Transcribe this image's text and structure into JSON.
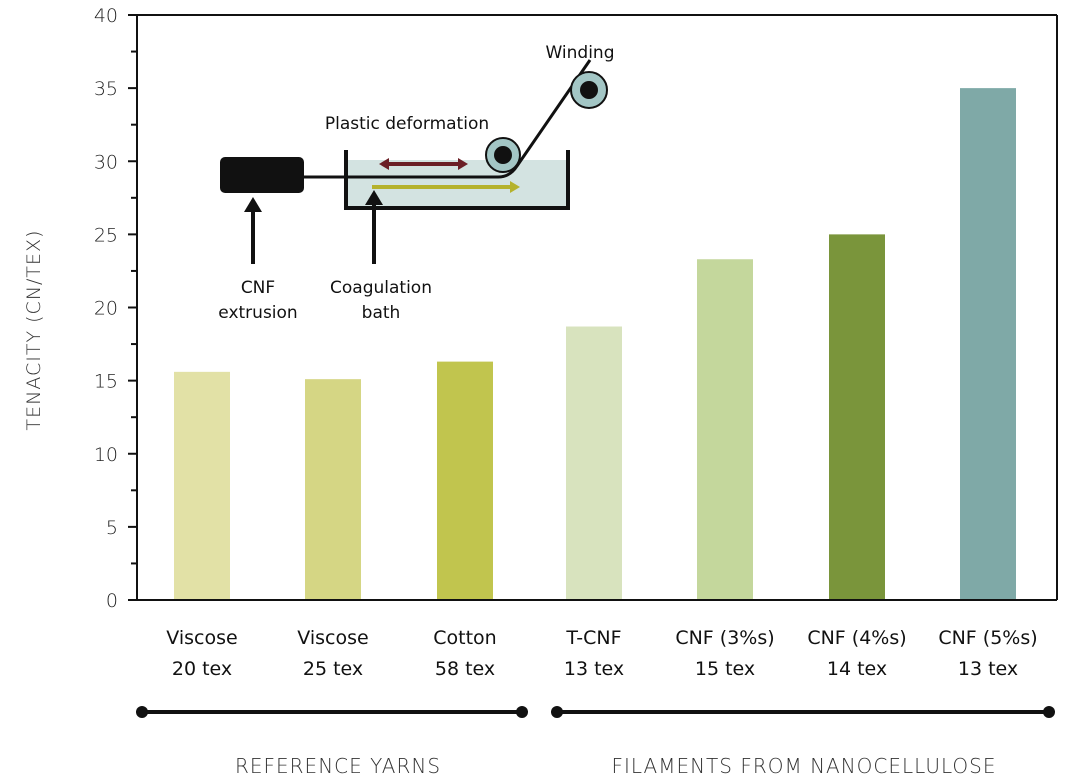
{
  "chart_data": {
    "type": "bar",
    "ylabel": "TENACITY (CN/TEX)",
    "ylim": [
      0,
      40
    ],
    "yticks": [
      0,
      5,
      10,
      15,
      20,
      25,
      30,
      35,
      40
    ],
    "grid": false,
    "categories": [
      {
        "line1": "Viscose",
        "line2": "20 tex"
      },
      {
        "line1": "Viscose",
        "line2": "25 tex"
      },
      {
        "line1": "Cotton",
        "line2": "58 tex"
      },
      {
        "line1": "T-CNF",
        "line2": "13 tex"
      },
      {
        "line1": "CNF (3%s)",
        "line2": "15 tex"
      },
      {
        "line1": "CNF (4%s)",
        "line2": "14 tex"
      },
      {
        "line1": "CNF (5%s)",
        "line2": "13 tex"
      }
    ],
    "values": [
      15.6,
      15.1,
      16.3,
      18.7,
      23.3,
      25.0,
      35.0
    ],
    "colors": [
      "#e2e1a6",
      "#d5d684",
      "#c1c54e",
      "#d8e3be",
      "#c4d79c",
      "#7a953b",
      "#7fa9a7"
    ],
    "groups": [
      {
        "label": "REFERENCE YARNS",
        "from": 0,
        "to": 2
      },
      {
        "label": "FILAMENTS FROM NANOCELLULOSE",
        "from": 3,
        "to": 6
      }
    ],
    "inset": {
      "winding": "Winding",
      "plastic_deformation": "Plastic deformation",
      "cnf_line1": "CNF",
      "cnf_line2": "extrusion",
      "bath_line1": "Coagulation",
      "bath_line2": "bath",
      "arrow_back_color": "#6b1f26",
      "arrow_fwd_color": "#b5b22c",
      "bath_color": "#d3e3e1",
      "roller_color": "#a3c6c5"
    }
  }
}
